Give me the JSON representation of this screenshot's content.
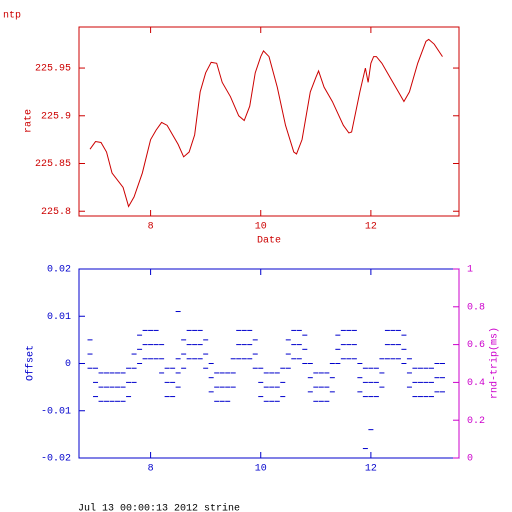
{
  "chart_data": [
    {
      "type": "line",
      "title": "ntp",
      "xlabel": "Date",
      "ylabel": "rate",
      "color": "#cc0000",
      "xlim": [
        6.7,
        13.6
      ],
      "xticks": [
        8,
        10,
        12
      ],
      "ylim": [
        225.795,
        225.993
      ],
      "yticks": [
        225.8,
        225.85,
        225.9,
        225.95
      ],
      "x": [
        6.9,
        7.0,
        7.1,
        7.2,
        7.3,
        7.5,
        7.6,
        7.7,
        7.85,
        8.0,
        8.1,
        8.2,
        8.3,
        8.4,
        8.5,
        8.6,
        8.7,
        8.8,
        8.9,
        9.0,
        9.1,
        9.2,
        9.3,
        9.45,
        9.6,
        9.7,
        9.8,
        9.9,
        10.0,
        10.05,
        10.15,
        10.3,
        10.45,
        10.6,
        10.65,
        10.75,
        10.9,
        11.0,
        11.05,
        11.15,
        11.3,
        11.5,
        11.6,
        11.65,
        11.8,
        11.9,
        11.95,
        12.0,
        12.05,
        12.1,
        12.2,
        12.35,
        12.5,
        12.6,
        12.7,
        12.85,
        13.0,
        13.05,
        13.15,
        13.3
      ],
      "values": [
        225.865,
        225.873,
        225.872,
        225.862,
        225.84,
        225.825,
        225.805,
        225.815,
        225.84,
        225.875,
        225.885,
        225.893,
        225.89,
        225.88,
        225.87,
        225.857,
        225.862,
        225.88,
        225.925,
        225.945,
        225.956,
        225.955,
        225.935,
        225.92,
        225.9,
        225.895,
        225.91,
        225.945,
        225.962,
        225.968,
        225.962,
        225.93,
        225.89,
        225.862,
        225.86,
        225.875,
        225.925,
        225.94,
        225.947,
        225.93,
        225.915,
        225.89,
        225.882,
        225.883,
        225.925,
        225.95,
        225.935,
        225.955,
        225.962,
        225.962,
        225.955,
        225.94,
        225.925,
        225.915,
        225.925,
        225.955,
        225.978,
        225.98,
        225.975,
        225.962
      ]
    },
    {
      "type": "scatter",
      "ylabel": "Offset",
      "y2label": "rnd-trip(ms)",
      "color": "#0000cc",
      "y2color": "#cc00cc",
      "xlim": [
        6.7,
        13.6
      ],
      "xticks": [
        8,
        10,
        12
      ],
      "ylim": [
        -0.02,
        0.02
      ],
      "yticks": [
        -0.02,
        -0.01,
        0,
        0.01,
        0.02
      ],
      "y2lim": [
        0,
        1
      ],
      "y2ticks": [
        0,
        0.2,
        0.4,
        0.6,
        0.8,
        1
      ],
      "x": [
        6.9,
        7.0,
        7.1,
        7.2,
        7.3,
        7.4,
        7.5,
        7.6,
        7.7,
        7.8,
        7.9,
        8.0,
        8.1,
        8.2,
        8.3,
        8.4,
        8.5,
        8.6,
        8.7,
        8.8,
        8.9,
        9.0,
        9.1,
        9.2,
        9.3,
        9.4,
        9.5,
        9.6,
        9.7,
        9.8,
        9.9,
        10.0,
        10.1,
        10.2,
        10.3,
        10.4,
        10.5,
        10.6,
        10.7,
        10.8,
        10.9,
        11.0,
        11.1,
        11.2,
        11.3,
        11.4,
        11.5,
        11.6,
        11.7,
        11.8,
        11.9,
        12.0,
        12.1,
        12.2,
        12.3,
        12.4,
        12.5,
        12.6,
        12.7,
        12.8,
        12.9,
        13.0,
        13.1,
        13.2,
        13.3
      ],
      "series": [
        {
          "values": [
            0.005,
            -0.001,
            -0.002,
            -0.002,
            -0.002,
            -0.002,
            -0.002,
            -0.001,
            0.002,
            0.006,
            0.007,
            0.007,
            0.007,
            0.004,
            -0.001,
            -0.001,
            0.001,
            0.005,
            0.007,
            0.007,
            0.007,
            0.005,
            0,
            -0.002,
            -0.002,
            -0.002,
            0.001,
            0.007,
            0.007,
            0.007,
            0.005,
            -0.001,
            -0.002,
            -0.002,
            -0.002,
            -0.001,
            0.005,
            0.007,
            0.007,
            0.006,
            0,
            -0.002,
            -0.002,
            -0.002,
            0,
            0.006,
            0.007,
            0.007,
            0.007,
            0,
            -0.001,
            -0.001,
            -0.001,
            0.001,
            0.007,
            0.007,
            0.007,
            0.006,
            0.001,
            -0.001,
            -0.001,
            -0.001,
            -0.001,
            0,
            0
          ]
        },
        {
          "values": [
            0.002,
            -0.004,
            -0.005,
            -0.005,
            -0.005,
            -0.005,
            -0.005,
            -0.004,
            -0.001,
            0.003,
            0.004,
            0.004,
            0.004,
            0.001,
            -0.004,
            -0.004,
            -0.002,
            0.002,
            0.004,
            0.004,
            0.004,
            0.002,
            -0.003,
            -0.005,
            -0.005,
            -0.005,
            -0.002,
            0.004,
            0.004,
            0.004,
            0.002,
            -0.004,
            -0.005,
            -0.005,
            -0.005,
            -0.004,
            0.002,
            0.004,
            0.004,
            0.003,
            -0.003,
            -0.005,
            -0.005,
            -0.005,
            -0.003,
            0.003,
            0.004,
            0.004,
            0.004,
            -0.003,
            -0.004,
            -0.004,
            -0.004,
            -0.002,
            0.004,
            0.004,
            0.004,
            0.003,
            -0.002,
            -0.004,
            -0.004,
            -0.004,
            -0.004,
            -0.003,
            -0.003
          ]
        },
        {
          "values": [
            -0.001,
            -0.007,
            -0.008,
            -0.008,
            -0.008,
            -0.008,
            -0.008,
            -0.007,
            -0.004,
            0,
            0.001,
            0.001,
            0.001,
            -0.002,
            -0.007,
            -0.007,
            -0.005,
            -0.001,
            0.001,
            0.001,
            0.001,
            -0.001,
            -0.006,
            -0.008,
            -0.008,
            -0.008,
            -0.005,
            0.001,
            0.001,
            0.001,
            -0.001,
            -0.007,
            -0.008,
            -0.008,
            -0.008,
            -0.007,
            -0.001,
            0.001,
            0.001,
            0,
            -0.006,
            -0.008,
            -0.008,
            -0.008,
            -0.006,
            0,
            0.001,
            0.001,
            0.001,
            -0.006,
            -0.007,
            -0.007,
            -0.007,
            -0.005,
            0.001,
            0.001,
            0.001,
            0,
            -0.005,
            -0.007,
            -0.007,
            -0.007,
            -0.007,
            -0.006,
            -0.006
          ]
        }
      ],
      "outliers": {
        "x": [
          8.5,
          11.9,
          12.0
        ],
        "values": [
          0.011,
          -0.018,
          -0.014
        ]
      }
    }
  ],
  "footer": "Jul 13 00:00:13 2012 strine"
}
